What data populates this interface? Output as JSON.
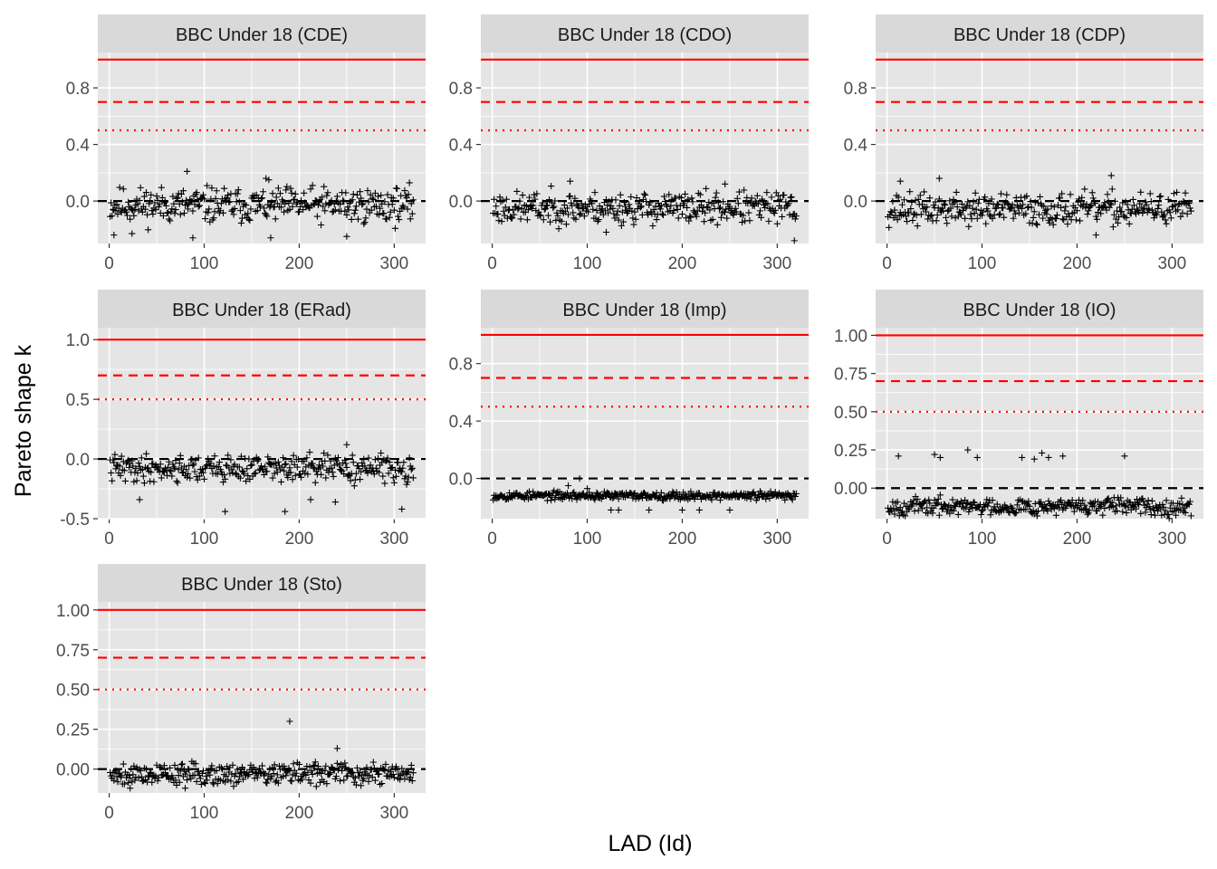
{
  "axis_titles": {
    "x": "LAD (Id)",
    "y": "Pareto shape k"
  },
  "colors": {
    "reference": "#ff0000",
    "points": "#000000",
    "zero_line": "#000000",
    "panel_bg": "#e5e5e5",
    "strip_bg": "#d9d9d9",
    "grid": "#ffffff"
  },
  "chart_data": [
    {
      "type": "scatter",
      "title": "BBC Under 18 (CDE)",
      "n": 320,
      "mean": -0.03,
      "spread": 0.09,
      "seed": 11,
      "outliers": [
        [
          5,
          -0.24
        ],
        [
          24,
          -0.23
        ],
        [
          82,
          0.21
        ],
        [
          88,
          -0.26
        ],
        [
          165,
          0.16
        ],
        [
          170,
          -0.26
        ],
        [
          250,
          -0.25
        ]
      ],
      "xlim": [
        -12,
        333
      ],
      "ylim": [
        -0.3,
        1.05
      ],
      "xticks": [
        0,
        100,
        200,
        300
      ],
      "yticks": [
        0.0,
        0.4,
        0.8
      ],
      "ytick_labels": [
        "0.0",
        "0.4",
        "0.8"
      ],
      "hlines": {
        "solid": 1.0,
        "dashed": 0.7,
        "dotted": 0.5
      }
    },
    {
      "type": "scatter",
      "title": "BBC Under 18 (CDO)",
      "n": 320,
      "mean": -0.05,
      "spread": 0.08,
      "seed": 23,
      "outliers": [
        [
          82,
          0.14
        ],
        [
          245,
          0.12
        ],
        [
          318,
          -0.28
        ],
        [
          120,
          -0.22
        ]
      ],
      "xlim": [
        -12,
        333
      ],
      "ylim": [
        -0.3,
        1.05
      ],
      "xticks": [
        0,
        100,
        200,
        300
      ],
      "yticks": [
        0.0,
        0.4,
        0.8
      ],
      "ytick_labels": [
        "0.0",
        "0.4",
        "0.8"
      ],
      "hlines": {
        "solid": 1.0,
        "dashed": 0.7,
        "dotted": 0.5
      }
    },
    {
      "type": "scatter",
      "title": "BBC Under 18 (CDP)",
      "n": 320,
      "mean": -0.06,
      "spread": 0.08,
      "seed": 37,
      "outliers": [
        [
          236,
          0.18
        ],
        [
          55,
          0.16
        ],
        [
          14,
          0.14
        ],
        [
          220,
          -0.24
        ]
      ],
      "xlim": [
        -12,
        333
      ],
      "ylim": [
        -0.3,
        1.05
      ],
      "xticks": [
        0,
        100,
        200,
        300
      ],
      "yticks": [
        0.0,
        0.4,
        0.8
      ],
      "ytick_labels": [
        "0.0",
        "0.4",
        "0.8"
      ],
      "hlines": {
        "solid": 1.0,
        "dashed": 0.7,
        "dotted": 0.5
      }
    },
    {
      "type": "scatter",
      "title": "BBC Under 18 (ERad)",
      "n": 320,
      "mean": -0.08,
      "spread": 0.08,
      "seed": 41,
      "outliers": [
        [
          32,
          -0.34
        ],
        [
          122,
          -0.44
        ],
        [
          185,
          -0.44
        ],
        [
          212,
          -0.34
        ],
        [
          250,
          0.12
        ],
        [
          308,
          -0.42
        ],
        [
          238,
          -0.36
        ]
      ],
      "xlim": [
        -12,
        333
      ],
      "ylim": [
        -0.5,
        1.1
      ],
      "xticks": [
        0,
        100,
        200,
        300
      ],
      "yticks": [
        -0.5,
        0.0,
        0.5,
        1.0
      ],
      "ytick_labels": [
        "-0.5",
        "0.0",
        "0.5",
        "1.0"
      ],
      "hlines": {
        "solid": 1.0,
        "dashed": 0.7,
        "dotted": 0.5
      }
    },
    {
      "type": "scatter",
      "title": "BBC Under 18 (Imp)",
      "n": 320,
      "mean": -0.12,
      "spread": 0.02,
      "seed": 53,
      "outliers": [
        [
          92,
          0.0
        ],
        [
          100,
          -0.07
        ],
        [
          125,
          -0.22
        ],
        [
          133,
          -0.22
        ],
        [
          165,
          -0.22
        ],
        [
          200,
          -0.22
        ],
        [
          218,
          -0.22
        ],
        [
          250,
          -0.22
        ],
        [
          80,
          -0.05
        ]
      ],
      "xlim": [
        -12,
        333
      ],
      "ylim": [
        -0.28,
        1.05
      ],
      "xticks": [
        0,
        100,
        200,
        300
      ],
      "yticks": [
        0.0,
        0.4,
        0.8
      ],
      "ytick_labels": [
        "0.0",
        "0.4",
        "0.8"
      ],
      "hlines": {
        "solid": 1.0,
        "dashed": 0.7,
        "dotted": 0.5
      }
    },
    {
      "type": "scatter",
      "title": "BBC Under 18 (IO)",
      "n": 320,
      "mean": -0.12,
      "spread": 0.04,
      "seed": 67,
      "outliers": [
        [
          12,
          0.21
        ],
        [
          50,
          0.22
        ],
        [
          56,
          0.2
        ],
        [
          85,
          0.25
        ],
        [
          95,
          0.2
        ],
        [
          155,
          0.19
        ],
        [
          163,
          0.23
        ],
        [
          170,
          0.2
        ],
        [
          185,
          0.21
        ],
        [
          250,
          0.21
        ],
        [
          142,
          0.2
        ]
      ],
      "xlim": [
        -12,
        333
      ],
      "ylim": [
        -0.2,
        1.05
      ],
      "xticks": [
        0,
        100,
        200,
        300
      ],
      "yticks": [
        0.0,
        0.25,
        0.5,
        0.75,
        1.0
      ],
      "ytick_labels": [
        "0.00",
        "0.25",
        "0.50",
        "0.75",
        "1.00"
      ],
      "hlines": {
        "solid": 1.0,
        "dashed": 0.7,
        "dotted": 0.5
      }
    },
    {
      "type": "scatter",
      "title": "BBC Under 18 (Sto)",
      "n": 320,
      "mean": -0.03,
      "spread": 0.05,
      "seed": 79,
      "outliers": [
        [
          190,
          0.3
        ],
        [
          22,
          -0.12
        ],
        [
          80,
          -0.12
        ],
        [
          240,
          0.13
        ]
      ],
      "xlim": [
        -12,
        333
      ],
      "ylim": [
        -0.15,
        1.05
      ],
      "xticks": [
        0,
        100,
        200,
        300
      ],
      "yticks": [
        0.0,
        0.25,
        0.5,
        0.75,
        1.0
      ],
      "ytick_labels": [
        "0.00",
        "0.25",
        "0.50",
        "0.75",
        "1.00"
      ],
      "hlines": {
        "solid": 1.0,
        "dashed": 0.7,
        "dotted": 0.5
      }
    }
  ]
}
